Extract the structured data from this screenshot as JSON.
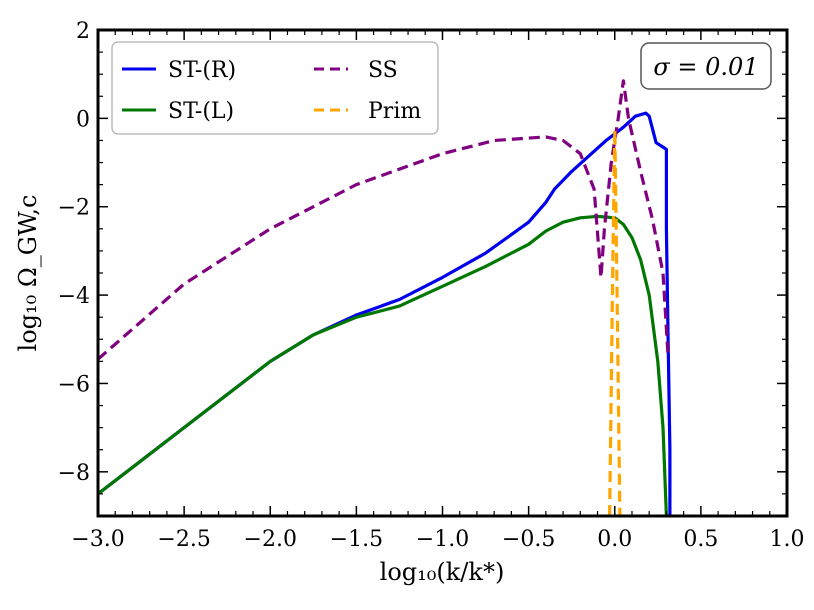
{
  "chart_data": {
    "type": "line",
    "xlabel": "log₁₀(k/k*)",
    "ylabel": "log₁₀ Ω_GW,c",
    "xlim": [
      -3.0,
      1.0
    ],
    "ylim": [
      -9.0,
      2.0
    ],
    "x_ticks": [
      -3.0,
      -2.5,
      -2.0,
      -1.5,
      -1.0,
      -0.5,
      0.0,
      0.5,
      1.0
    ],
    "x_tick_labels": [
      "−3.0",
      "−2.5",
      "−2.0",
      "−1.5",
      "−1.0",
      "−0.5",
      "0.0",
      "0.5",
      "1.0"
    ],
    "y_ticks": [
      -8,
      -6,
      -4,
      -2,
      0,
      2
    ],
    "y_tick_labels": [
      "−8",
      "−6",
      "−4",
      "−2",
      "0",
      "2"
    ],
    "grid": false,
    "legend_position": "top-left",
    "annotation": "σ = 0.01",
    "series": [
      {
        "name": "ST-(R)",
        "color": "#0000ee",
        "style": "solid",
        "points": [
          [
            -3.0,
            -8.5
          ],
          [
            -2.5,
            -7.0
          ],
          [
            -2.0,
            -5.5
          ],
          [
            -1.75,
            -4.9
          ],
          [
            -1.5,
            -4.45
          ],
          [
            -1.25,
            -4.1
          ],
          [
            -1.0,
            -3.6
          ],
          [
            -0.75,
            -3.05
          ],
          [
            -0.5,
            -2.35
          ],
          [
            -0.4,
            -1.9
          ],
          [
            -0.35,
            -1.6
          ],
          [
            -0.25,
            -1.2
          ],
          [
            -0.15,
            -0.85
          ],
          [
            -0.05,
            -0.5
          ],
          [
            0.05,
            -0.2
          ],
          [
            0.12,
            0.05
          ],
          [
            0.18,
            0.12
          ],
          [
            0.2,
            0.05
          ],
          [
            0.24,
            -0.55
          ],
          [
            0.28,
            -0.65
          ],
          [
            0.3,
            -0.7
          ],
          [
            0.3,
            -2.5
          ],
          [
            0.31,
            -5.0
          ],
          [
            0.32,
            -7.5
          ],
          [
            0.32,
            -9.0
          ]
        ]
      },
      {
        "name": "ST-(L)",
        "color": "#007700",
        "style": "solid",
        "points": [
          [
            -3.0,
            -8.5
          ],
          [
            -2.5,
            -7.0
          ],
          [
            -2.0,
            -5.5
          ],
          [
            -1.75,
            -4.9
          ],
          [
            -1.5,
            -4.5
          ],
          [
            -1.25,
            -4.25
          ],
          [
            -1.0,
            -3.8
          ],
          [
            -0.75,
            -3.35
          ],
          [
            -0.5,
            -2.85
          ],
          [
            -0.4,
            -2.55
          ],
          [
            -0.3,
            -2.35
          ],
          [
            -0.2,
            -2.25
          ],
          [
            -0.1,
            -2.22
          ],
          [
            0.0,
            -2.25
          ],
          [
            0.05,
            -2.4
          ],
          [
            0.1,
            -2.7
          ],
          [
            0.15,
            -3.2
          ],
          [
            0.2,
            -4.0
          ],
          [
            0.25,
            -5.5
          ],
          [
            0.28,
            -7.0
          ],
          [
            0.3,
            -9.0
          ]
        ]
      },
      {
        "name": "SS",
        "color": "#800080",
        "style": "dashed",
        "points": [
          [
            -3.0,
            -5.45
          ],
          [
            -2.5,
            -3.75
          ],
          [
            -2.0,
            -2.5
          ],
          [
            -1.5,
            -1.5
          ],
          [
            -1.0,
            -0.8
          ],
          [
            -0.7,
            -0.5
          ],
          [
            -0.4,
            -0.42
          ],
          [
            -0.3,
            -0.5
          ],
          [
            -0.2,
            -0.8
          ],
          [
            -0.12,
            -1.6
          ],
          [
            -0.08,
            -3.6
          ],
          [
            -0.06,
            -2.5
          ],
          [
            -0.02,
            -1.0
          ],
          [
            0.02,
            0.0
          ],
          [
            0.05,
            0.85
          ],
          [
            0.08,
            0.0
          ],
          [
            0.15,
            -1.2
          ],
          [
            0.22,
            -2.3
          ],
          [
            0.28,
            -3.5
          ],
          [
            0.31,
            -5.4
          ]
        ]
      },
      {
        "name": "Prim",
        "color": "#ffa500",
        "style": "dashed",
        "points": [
          [
            -0.03,
            -9.0
          ],
          [
            -0.02,
            -6.0
          ],
          [
            -0.01,
            -3.0
          ],
          [
            0.0,
            -0.25
          ],
          [
            0.01,
            -3.0
          ],
          [
            0.02,
            -6.0
          ],
          [
            0.03,
            -9.0
          ]
        ]
      }
    ]
  }
}
